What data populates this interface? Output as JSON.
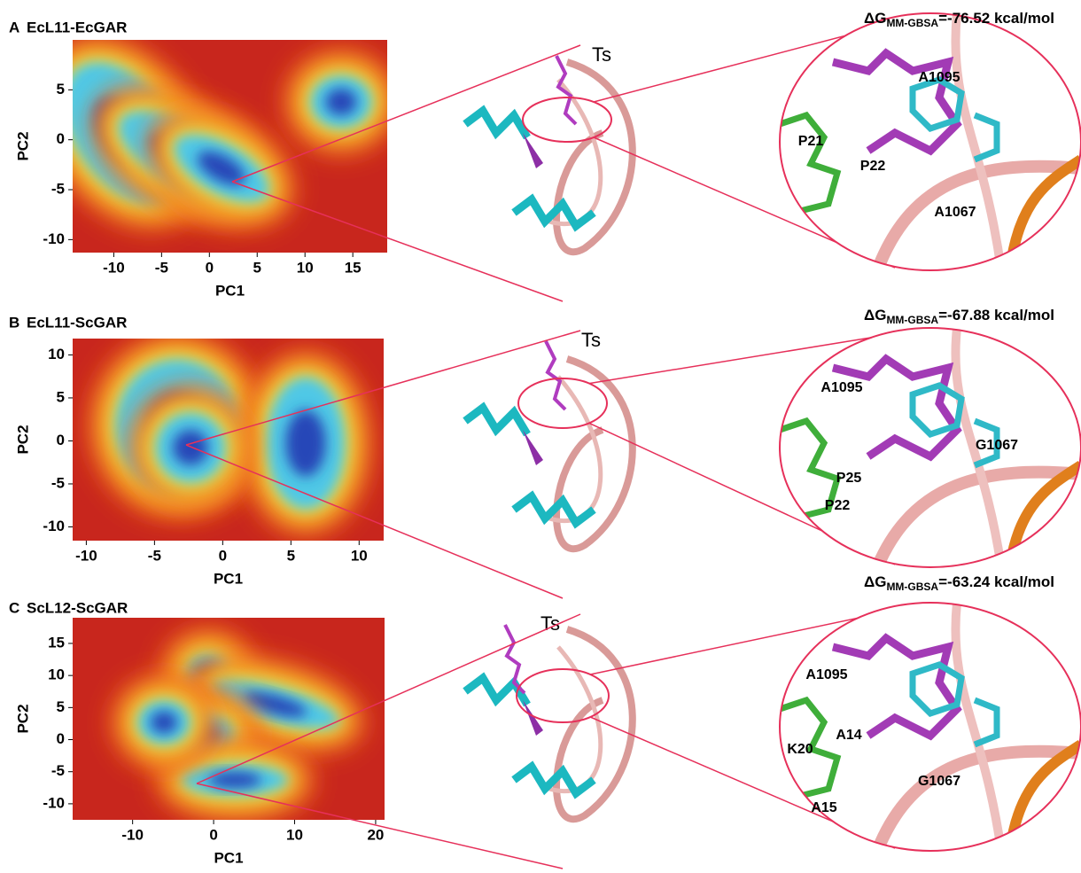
{
  "panels": [
    {
      "label": "A",
      "title": "EcL11-EcGAR",
      "energy": {
        "symbol": "ΔG",
        "subscript": "MM-GBSA",
        "value": "=-76.52 kcal/mol"
      },
      "xlabel": "PC1",
      "ylabel": "PC2",
      "xlim": [
        -14.3,
        18.6
      ],
      "ylim": [
        -11.3,
        10
      ],
      "xticks": [
        -10,
        -5,
        0,
        5,
        10,
        15
      ],
      "yticks": [
        5,
        0,
        -5,
        -10
      ],
      "ligand": "Ts",
      "residues": [
        "A1095",
        "P21",
        "P22",
        "A1067"
      ]
    },
    {
      "label": "B",
      "title": "EcL11-ScGAR",
      "energy": {
        "symbol": "ΔG",
        "subscript": "MM-GBSA",
        "value": "=-67.88 kcal/mol"
      },
      "xlabel": "PC1",
      "ylabel": "PC2",
      "xlim": [
        -11,
        11.8
      ],
      "ylim": [
        -11.6,
        11.9
      ],
      "xticks": [
        -10,
        -5,
        0,
        5,
        10
      ],
      "yticks": [
        10,
        5,
        0,
        -5,
        -10
      ],
      "ligand": "Ts",
      "residues": [
        "A1095",
        "G1067",
        "P25",
        "P22"
      ]
    },
    {
      "label": "C",
      "title": "ScL12-ScGAR",
      "energy": {
        "symbol": "ΔG",
        "subscript": "MM-GBSA",
        "value": "=-63.24 kcal/mol"
      },
      "xlabel": "PC1",
      "ylabel": "PC2",
      "xlim": [
        -17.4,
        21.1
      ],
      "ylim": [
        -12.5,
        19
      ],
      "xticks": [
        -10,
        0,
        10,
        20
      ],
      "yticks": [
        15,
        10,
        5,
        0,
        -5,
        -10
      ],
      "ligand": "Ts",
      "residues": [
        "A1095",
        "A14",
        "K20",
        "G1067",
        "A15"
      ]
    }
  ]
}
